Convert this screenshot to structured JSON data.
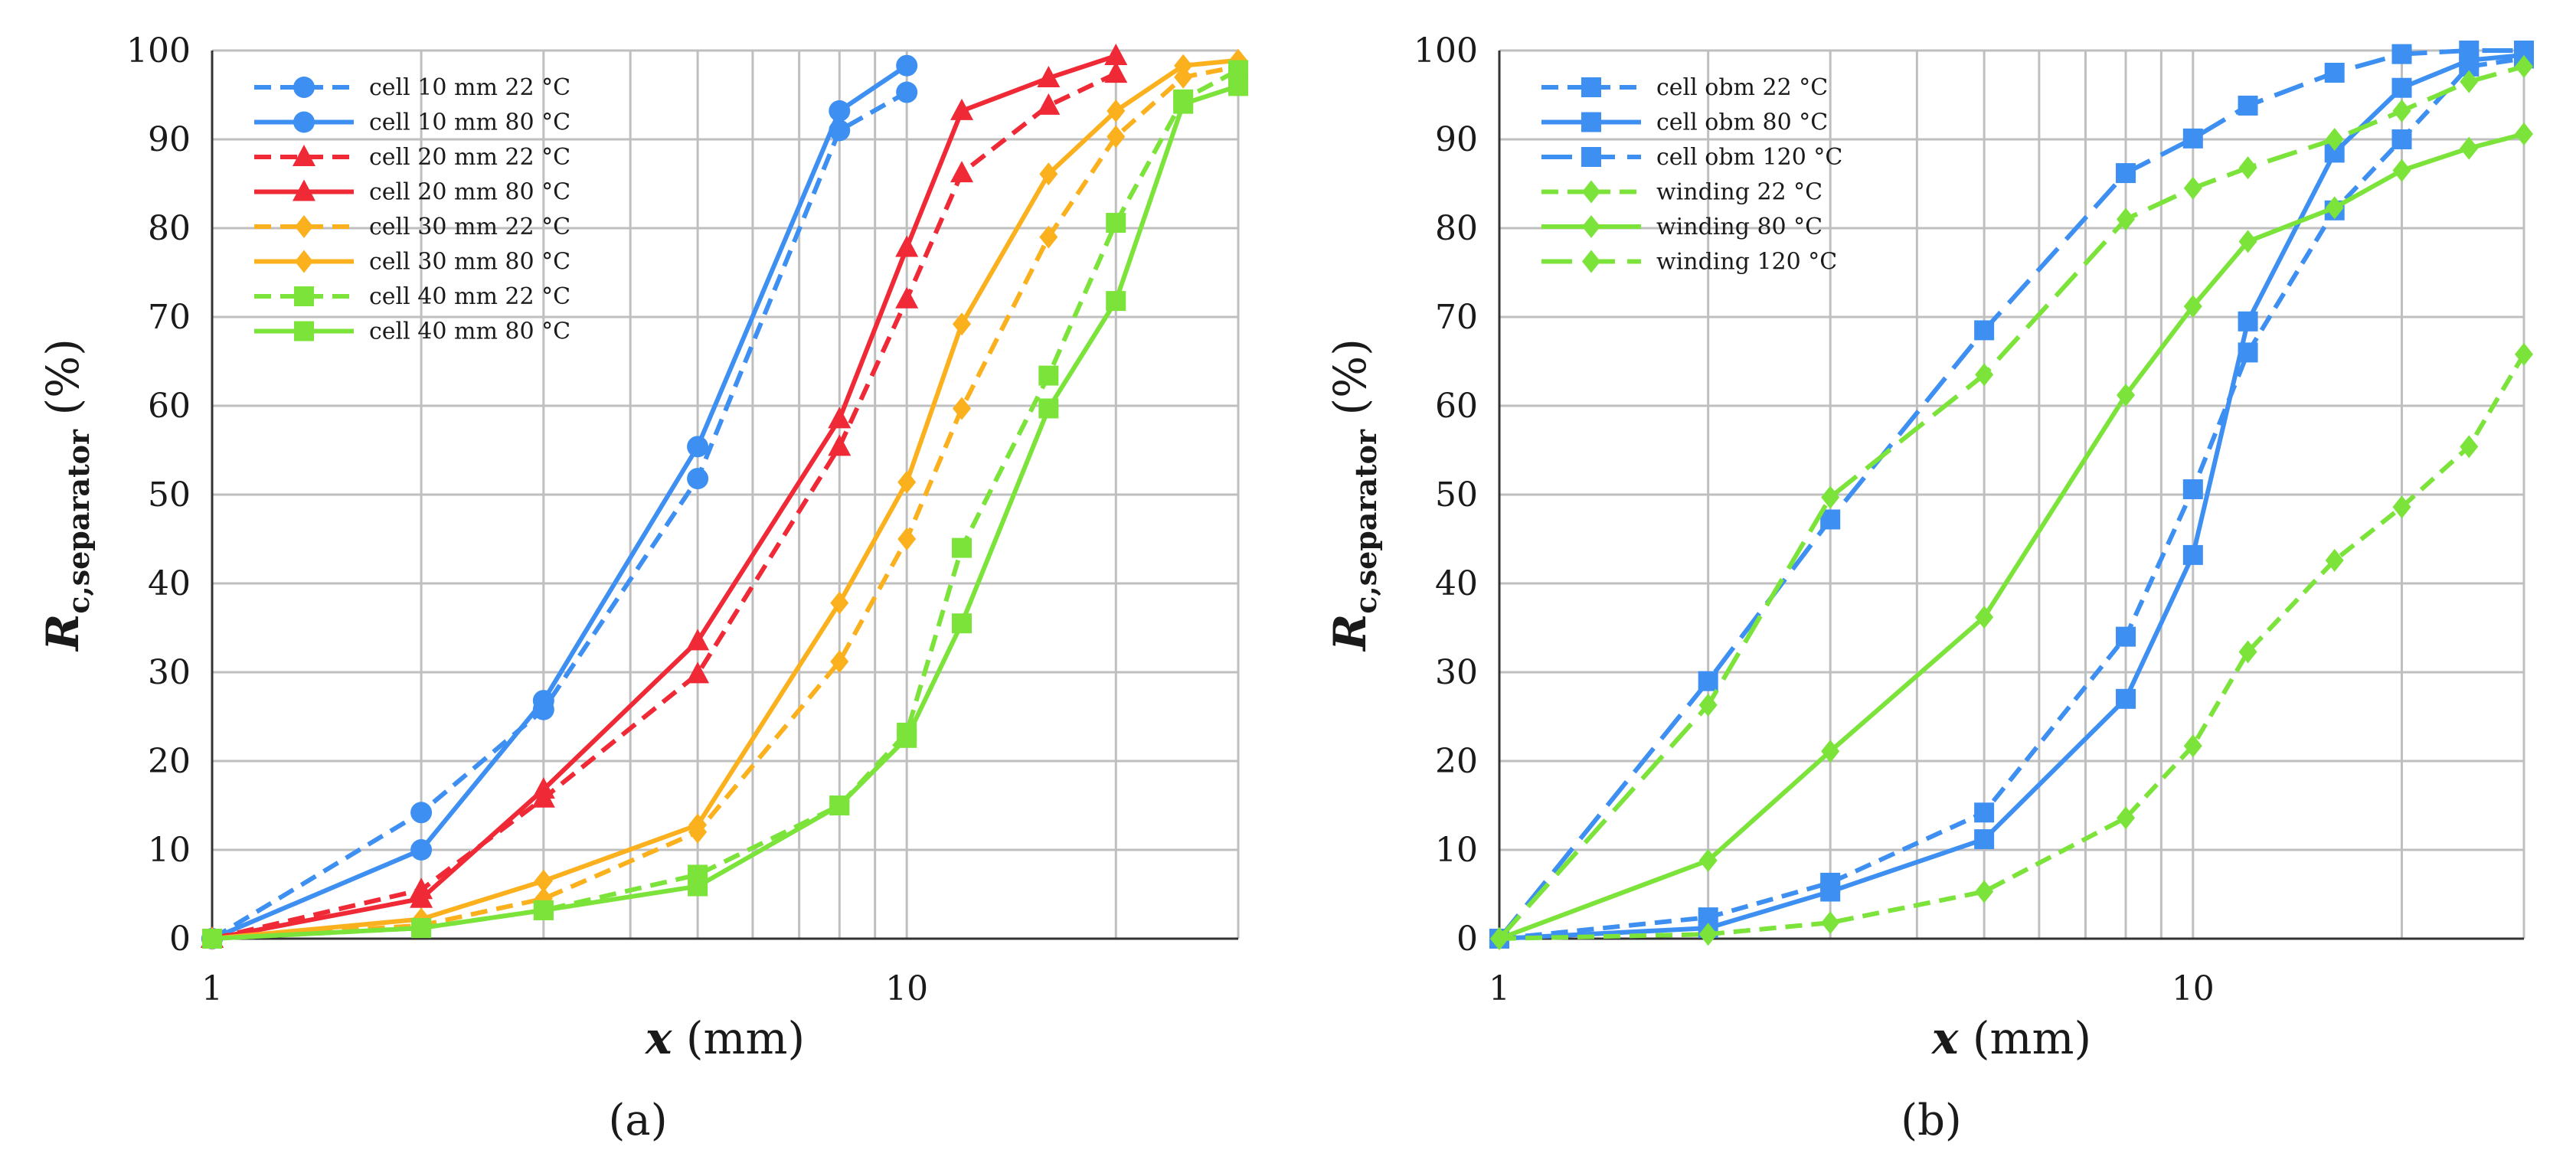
{
  "panel_labels": [
    "(a)",
    "(b)"
  ],
  "chart_data": [
    {
      "type": "line",
      "panel": "a",
      "xscale": "log",
      "xlim": [
        1,
        30
      ],
      "ylim": [
        0,
        100
      ],
      "grid": true,
      "legend_position": "top-left",
      "xlabel": {
        "var": "x",
        "unit": " (mm)"
      },
      "ylabel": {
        "var": "R",
        "sub": "c,separator",
        "unit": " (%)"
      },
      "x_tick_labels": [
        {
          "value": 1,
          "label": "1"
        },
        {
          "value": 10,
          "label": "10"
        }
      ],
      "y_tick_labels": [
        "0",
        "10",
        "20",
        "30",
        "40",
        "50",
        "60",
        "70",
        "80",
        "90",
        "100"
      ],
      "series": [
        {
          "name": "cell 10 mm 22 °C",
          "color": "#3d8ff2",
          "dash": "dashed",
          "marker": "circle",
          "points": [
            [
              1,
              0
            ],
            [
              2,
              14.2
            ],
            [
              3,
              25.8
            ],
            [
              5,
              51.8
            ],
            [
              8,
              91
            ],
            [
              10,
              95.3
            ]
          ]
        },
        {
          "name": "cell 10 mm 80 °C",
          "color": "#3d8ff2",
          "dash": "solid",
          "marker": "circle",
          "points": [
            [
              1,
              0
            ],
            [
              2,
              10
            ],
            [
              3,
              26.8
            ],
            [
              5,
              55.4
            ],
            [
              8,
              93.2
            ],
            [
              10,
              98.3
            ]
          ]
        },
        {
          "name": "cell 20 mm 22 °C",
          "color": "#ef2936",
          "dash": "dashed",
          "marker": "triangle",
          "points": [
            [
              1,
              0
            ],
            [
              2,
              5.5
            ],
            [
              3,
              15.8
            ],
            [
              5,
              29.8
            ],
            [
              8,
              55.4
            ],
            [
              10,
              72
            ],
            [
              12,
              86.2
            ],
            [
              16,
              93.8
            ],
            [
              20,
              97.4
            ]
          ]
        },
        {
          "name": "cell 20 mm 80 °C",
          "color": "#ef2936",
          "dash": "solid",
          "marker": "triangle",
          "points": [
            [
              1,
              0
            ],
            [
              2,
              4.5
            ],
            [
              3,
              16.8
            ],
            [
              5,
              33.5
            ],
            [
              8,
              58.5
            ],
            [
              10,
              77.8
            ],
            [
              12,
              93.2
            ],
            [
              16,
              96.9
            ],
            [
              20,
              99.4
            ]
          ]
        },
        {
          "name": "cell 30 mm 22 °C",
          "color": "#fbb01e",
          "dash": "dashed",
          "marker": "diamond",
          "points": [
            [
              1,
              0
            ],
            [
              2,
              1.5
            ],
            [
              3,
              4.5
            ],
            [
              5,
              12
            ],
            [
              8,
              31.2
            ],
            [
              10,
              45
            ],
            [
              12,
              59.7
            ],
            [
              16,
              79
            ],
            [
              20,
              90.3
            ],
            [
              25,
              97
            ],
            [
              30,
              98.2
            ]
          ]
        },
        {
          "name": "cell 30 mm 80 °C",
          "color": "#fbb01e",
          "dash": "solid",
          "marker": "diamond",
          "points": [
            [
              1,
              0
            ],
            [
              2,
              2.2
            ],
            [
              3,
              6.5
            ],
            [
              5,
              12.8
            ],
            [
              8,
              37.8
            ],
            [
              10,
              51.4
            ],
            [
              12,
              69.2
            ],
            [
              16,
              86.1
            ],
            [
              20,
              93.2
            ],
            [
              25,
              98.3
            ],
            [
              30,
              98.9
            ]
          ]
        },
        {
          "name": "cell 40 mm 22 °C",
          "color": "#7be33a",
          "dash": "dashed",
          "marker": "square",
          "points": [
            [
              1,
              0
            ],
            [
              2,
              1.2
            ],
            [
              3,
              3.2
            ],
            [
              5,
              7.2
            ],
            [
              8,
              15
            ],
            [
              10,
              23.2
            ],
            [
              12,
              44
            ],
            [
              16,
              63.4
            ],
            [
              20,
              80.6
            ],
            [
              25,
              94.5
            ],
            [
              30,
              97.8
            ]
          ]
        },
        {
          "name": "cell 40 mm 80 °C",
          "color": "#7be33a",
          "dash": "solid",
          "marker": "square",
          "points": [
            [
              1,
              0
            ],
            [
              2,
              1.2
            ],
            [
              3,
              3.2
            ],
            [
              5,
              5.9
            ],
            [
              8,
              15
            ],
            [
              10,
              22.6
            ],
            [
              12,
              35.5
            ],
            [
              16,
              59.7
            ],
            [
              20,
              71.8
            ],
            [
              25,
              94
            ],
            [
              30,
              96
            ]
          ]
        }
      ]
    },
    {
      "type": "line",
      "panel": "b",
      "xscale": "log",
      "xlim": [
        1,
        30
      ],
      "ylim": [
        0,
        100
      ],
      "grid": true,
      "legend_position": "top-left",
      "xlabel": {
        "var": "x",
        "unit": " (mm)"
      },
      "ylabel": {
        "var": "R",
        "sub": "c,separator",
        "unit": " (%)"
      },
      "x_tick_labels": [
        {
          "value": 1,
          "label": "1"
        },
        {
          "value": 10,
          "label": "10"
        }
      ],
      "y_tick_labels": [
        "0",
        "10",
        "20",
        "30",
        "40",
        "50",
        "60",
        "70",
        "80",
        "90",
        "100"
      ],
      "series": [
        {
          "name": "cell obm 22 °C",
          "color": "#3d8ff2",
          "dash": "dashed",
          "marker": "square",
          "points": [
            [
              1,
              0
            ],
            [
              2,
              2.4
            ],
            [
              3,
              6.3
            ],
            [
              5,
              14.2
            ],
            [
              8,
              34
            ],
            [
              10,
              50.6
            ],
            [
              12,
              66
            ],
            [
              16,
              82
            ],
            [
              20,
              90
            ],
            [
              25,
              98.2
            ],
            [
              30,
              99.1
            ]
          ]
        },
        {
          "name": "cell obm 80 °C",
          "color": "#3d8ff2",
          "dash": "solid",
          "marker": "square",
          "points": [
            [
              1,
              0
            ],
            [
              2,
              1.2
            ],
            [
              3,
              5.3
            ],
            [
              5,
              11.2
            ],
            [
              8,
              27
            ],
            [
              10,
              43.2
            ],
            [
              12,
              69.5
            ],
            [
              16,
              88.5
            ],
            [
              20,
              95.8
            ],
            [
              25,
              98.9
            ],
            [
              30,
              99.5
            ]
          ]
        },
        {
          "name": "cell obm 120 °C",
          "color": "#3d8ff2",
          "dash": "longdash",
          "marker": "square",
          "points": [
            [
              1,
              0
            ],
            [
              2,
              29
            ],
            [
              3,
              47.2
            ],
            [
              5,
              68.5
            ],
            [
              8,
              86.2
            ],
            [
              10,
              90.1
            ],
            [
              12,
              93.8
            ],
            [
              16,
              97.5
            ],
            [
              20,
              99.6
            ],
            [
              25,
              100
            ],
            [
              30,
              100
            ]
          ]
        },
        {
          "name": "winding 22 °C",
          "color": "#7be33a",
          "dash": "dashed",
          "marker": "diamond",
          "points": [
            [
              1,
              0
            ],
            [
              2,
              0.5
            ],
            [
              3,
              1.8
            ],
            [
              5,
              5.3
            ],
            [
              8,
              13.6
            ],
            [
              10,
              21.7
            ],
            [
              12,
              32.3
            ],
            [
              16,
              42.6
            ],
            [
              20,
              48.6
            ],
            [
              25,
              55.4
            ],
            [
              30,
              65.8
            ]
          ]
        },
        {
          "name": "winding 80 °C",
          "color": "#7be33a",
          "dash": "solid",
          "marker": "diamond",
          "points": [
            [
              1,
              0
            ],
            [
              2,
              8.8
            ],
            [
              3,
              21.1
            ],
            [
              5,
              36.2
            ],
            [
              8,
              61.2
            ],
            [
              10,
              71.2
            ],
            [
              12,
              78.5
            ],
            [
              16,
              82.3
            ],
            [
              20,
              86.5
            ],
            [
              25,
              89
            ],
            [
              30,
              90.6
            ]
          ]
        },
        {
          "name": "winding 120 °C",
          "color": "#7be33a",
          "dash": "longdash",
          "marker": "diamond",
          "points": [
            [
              1,
              0
            ],
            [
              2,
              26.3
            ],
            [
              3,
              49.7
            ],
            [
              5,
              63.5
            ],
            [
              8,
              81
            ],
            [
              10,
              84.5
            ],
            [
              12,
              86.8
            ],
            [
              16,
              90
            ],
            [
              20,
              93.2
            ],
            [
              25,
              96.5
            ],
            [
              30,
              98.2
            ]
          ]
        }
      ]
    }
  ]
}
